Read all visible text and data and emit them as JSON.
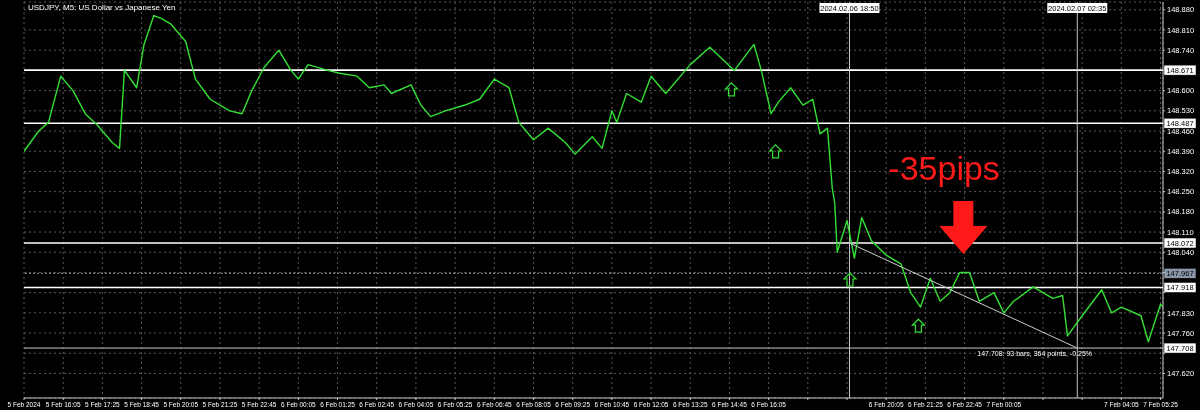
{
  "chart_data": {
    "type": "line",
    "title": "USDJPY, M5: US Dollar vs Japanese Yen",
    "series": [
      {
        "color": "#33e033",
        "x": [
          "2024-02-05T14:45",
          "2024-02-05T15:15",
          "2024-02-05T15:35",
          "2024-02-05T16:00",
          "2024-02-05T16:25",
          "2024-02-05T16:50",
          "2024-02-05T17:15",
          "2024-02-05T17:45",
          "2024-02-05T18:00",
          "2024-02-05T18:10",
          "2024-02-05T18:35",
          "2024-02-05T18:50",
          "2024-02-05T19:10",
          "2024-02-05T19:25",
          "2024-02-05T19:45",
          "2024-02-05T20:15",
          "2024-02-05T20:35",
          "2024-02-05T21:05",
          "2024-02-05T21:45",
          "2024-02-05T22:10",
          "2024-02-05T22:30",
          "2024-02-05T22:55",
          "2024-02-05T23:25",
          "2024-02-05T23:50",
          "2024-02-06T00:05",
          "2024-02-06T00:25",
          "2024-02-06T01:05",
          "2024-02-06T01:30",
          "2024-02-06T02:05",
          "2024-02-06T02:30",
          "2024-02-06T03:00",
          "2024-02-06T03:15",
          "2024-02-06T03:55",
          "2024-02-06T04:15",
          "2024-02-06T04:35",
          "2024-02-06T05:05",
          "2024-02-06T05:45",
          "2024-02-06T06:15",
          "2024-02-06T06:45",
          "2024-02-06T07:15",
          "2024-02-06T07:35",
          "2024-02-06T08:05",
          "2024-02-06T08:35",
          "2024-02-06T09:10",
          "2024-02-06T09:30",
          "2024-02-06T10:05",
          "2024-02-06T10:25",
          "2024-02-06T10:45",
          "2024-02-06T10:55",
          "2024-02-06T11:15",
          "2024-02-06T11:45",
          "2024-02-06T12:05",
          "2024-02-06T12:35",
          "2024-02-06T13:25",
          "2024-02-06T14:05",
          "2024-02-06T14:55",
          "2024-02-06T15:35",
          "2024-02-06T15:50",
          "2024-02-06T16:10",
          "2024-02-06T16:25",
          "2024-02-06T16:50",
          "2024-02-06T17:15",
          "2024-02-06T17:35",
          "2024-02-06T17:50",
          "2024-02-06T18:05",
          "2024-02-06T18:15",
          "2024-02-06T18:20",
          "2024-02-06T18:25",
          "2024-02-06T18:45",
          "2024-02-06T19:00",
          "2024-02-06T19:15",
          "2024-02-06T19:35",
          "2024-02-06T20:05",
          "2024-02-06T20:35",
          "2024-02-06T20:55",
          "2024-02-06T21:15",
          "2024-02-06T21:35",
          "2024-02-06T21:55",
          "2024-02-06T22:15",
          "2024-02-06T22:35",
          "2024-02-06T22:55",
          "2024-02-06T23:15",
          "2024-02-06T23:45",
          "2024-02-07T00:05",
          "2024-02-07T00:25",
          "2024-02-07T01:05",
          "2024-02-07T01:45",
          "2024-02-07T02:05",
          "2024-02-07T02:15",
          "2024-02-07T02:45",
          "2024-02-07T03:25",
          "2024-02-07T03:45",
          "2024-02-07T04:05",
          "2024-02-07T04:45",
          "2024-02-07T05:00",
          "2024-02-07T05:25",
          "2024-02-07T05:30"
        ],
        "values": [
          148.39,
          148.46,
          148.49,
          148.65,
          148.6,
          148.52,
          148.48,
          148.42,
          148.4,
          148.67,
          148.61,
          148.76,
          148.86,
          148.85,
          148.83,
          148.77,
          148.64,
          148.57,
          148.53,
          148.52,
          148.6,
          148.68,
          148.74,
          148.67,
          148.64,
          148.69,
          148.67,
          148.66,
          148.65,
          148.61,
          148.62,
          148.59,
          148.62,
          148.55,
          148.51,
          148.53,
          148.55,
          148.57,
          148.64,
          148.61,
          148.49,
          148.43,
          148.47,
          148.42,
          148.38,
          148.44,
          148.4,
          148.53,
          148.49,
          148.59,
          148.56,
          148.65,
          148.59,
          148.69,
          148.75,
          148.67,
          148.76,
          148.67,
          148.52,
          148.56,
          148.61,
          148.55,
          148.57,
          148.45,
          148.47,
          148.26,
          148.21,
          148.04,
          148.15,
          148.02,
          148.16,
          148.08,
          148.03,
          148.0,
          147.9,
          147.85,
          147.95,
          147.87,
          147.9,
          147.97,
          147.97,
          147.87,
          147.9,
          147.83,
          147.87,
          147.92,
          147.88,
          147.89,
          147.75,
          147.82,
          147.91,
          147.83,
          147.85,
          147.82,
          147.73,
          147.86,
          147.85
        ]
      },
      {
        "color": "#cccccc",
        "x": [
          "2024-02-06T18:50",
          "2024-02-07T02:35"
        ],
        "values": [
          148.072,
          147.708
        ]
      }
    ],
    "xlim": [
      "2024-02-05T14:45",
      "2024-02-07T05:30"
    ],
    "xticks": [
      {
        "value": "2024-02-05T14:45",
        "label": "5 Feb 2024"
      },
      {
        "value": "2024-02-05T16:05",
        "label": "5 Feb 16:05"
      },
      {
        "value": "2024-02-05T17:25",
        "label": "5 Feb 17:25"
      },
      {
        "value": "2024-02-05T18:45",
        "label": "5 Feb 18:45"
      },
      {
        "value": "2024-02-05T20:05",
        "label": "5 Feb 20:05"
      },
      {
        "value": "2024-02-05T21:25",
        "label": "5 Feb 21:25"
      },
      {
        "value": "2024-02-05T22:45",
        "label": "5 Feb 22:45"
      },
      {
        "value": "2024-02-06T00:05",
        "label": "6 Feb 00:05"
      },
      {
        "value": "2024-02-06T01:25",
        "label": "6 Feb 01:25"
      },
      {
        "value": "2024-02-06T02:45",
        "label": "6 Feb 02:45"
      },
      {
        "value": "2024-02-06T04:05",
        "label": "6 Feb 04:05"
      },
      {
        "value": "2024-02-06T05:25",
        "label": "6 Feb 05:25"
      },
      {
        "value": "2024-02-06T06:45",
        "label": "6 Feb 06:45"
      },
      {
        "value": "2024-02-06T08:05",
        "label": "6 Feb 08:05"
      },
      {
        "value": "2024-02-06T09:25",
        "label": "6 Feb 09:25"
      },
      {
        "value": "2024-02-06T10:45",
        "label": "6 Feb 10:45"
      },
      {
        "value": "2024-02-06T12:05",
        "label": "6 Feb 12:05"
      },
      {
        "value": "2024-02-06T13:25",
        "label": "6 Feb 13:25"
      },
      {
        "value": "2024-02-06T14:45",
        "label": "6 Feb 14:45"
      },
      {
        "value": "2024-02-06T16:05",
        "label": "6 Feb 16:05"
      },
      {
        "value": "2024-02-06T17:25",
        "label": null
      },
      {
        "value": "2024-02-06T18:45",
        "label": null
      },
      {
        "value": "2024-02-06T20:05",
        "label": "6 Feb 20:05"
      },
      {
        "value": "2024-02-06T21:25",
        "label": "6 Feb 21:25"
      },
      {
        "value": "2024-02-06T22:45",
        "label": "6 Feb 22:45"
      },
      {
        "value": "2024-02-07T00:05",
        "label": "7 Feb 00:05"
      },
      {
        "value": "2024-02-07T01:25",
        "label": null
      },
      {
        "value": "2024-02-07T02:45",
        "label": null
      },
      {
        "value": "2024-02-07T04:05",
        "label": "7 Feb 04:05"
      },
      {
        "value": "2024-02-07T05:25",
        "label": "7 Feb 05:25"
      }
    ],
    "ylim": [
      147.535,
      148.907
    ],
    "yticks": [
      {
        "value": 148.88,
        "label": "148.880"
      },
      {
        "value": 148.81,
        "label": "148.810"
      },
      {
        "value": 148.74,
        "label": "148.740"
      },
      {
        "value": 148.67,
        "label": null
      },
      {
        "value": 148.6,
        "label": "148.600"
      },
      {
        "value": 148.53,
        "label": "148.530"
      },
      {
        "value": 148.46,
        "label": "148.460"
      },
      {
        "value": 148.39,
        "label": "148.390"
      },
      {
        "value": 148.32,
        "label": "148.320"
      },
      {
        "value": 148.25,
        "label": "148.250"
      },
      {
        "value": 148.18,
        "label": "148.180"
      },
      {
        "value": 148.11,
        "label": "148.110"
      },
      {
        "value": 148.04,
        "label": "148.040"
      },
      {
        "value": 147.97,
        "label": null
      },
      {
        "value": 147.9,
        "label": null
      },
      {
        "value": 147.83,
        "label": "147.830"
      },
      {
        "value": 147.76,
        "label": "147.760"
      },
      {
        "value": 147.69,
        "label": null
      },
      {
        "value": 147.62,
        "label": "147.620"
      }
    ],
    "grid": true,
    "marker": "none",
    "ref_lines": [
      {
        "axis": "y",
        "value": 148.671,
        "label": "148.671",
        "color": "#ffffff",
        "line_style": "solid"
      },
      {
        "axis": "y",
        "value": 148.487,
        "label": "148.487",
        "color": "#ffffff",
        "line_style": "solid"
      },
      {
        "axis": "y",
        "value": 148.072,
        "label": "148.072",
        "color": "#ffffff",
        "line_style": "solid"
      },
      {
        "axis": "y",
        "value": 147.967,
        "label": "147.967",
        "color": "#8a97a8",
        "line_style": "dotted"
      },
      {
        "axis": "y",
        "value": 147.918,
        "label": "147.918",
        "color": "#ffffff",
        "line_style": "solid"
      },
      {
        "axis": "y",
        "value": 147.708,
        "label": "147.708",
        "color": "#c8c8c8",
        "line_style": "solid"
      },
      {
        "axis": "x",
        "value": "2024-02-06T18:50",
        "label": "2024.02.06 18:50",
        "color": "#c8c8c8",
        "line_style": "solid"
      },
      {
        "axis": "x",
        "value": "2024-02-07T02:35",
        "label": "2024.02.07 02:35",
        "color": "#c8c8c8",
        "line_style": "solid"
      }
    ],
    "annotations": [
      "-35pips",
      "147.708: 93 bars, 364 points, -0.25%"
    ]
  }
}
